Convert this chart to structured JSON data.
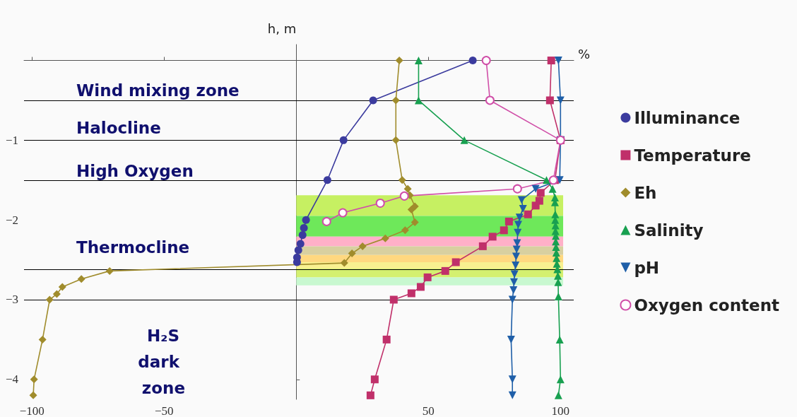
{
  "chart_data": {
    "type": "line",
    "xlabel": "%",
    "ylabel": "h, m",
    "xlim": [
      -103,
      105
    ],
    "xticks": [
      -100,
      -50,
      50,
      100
    ],
    "ylim": [
      -4.25,
      0.2
    ],
    "yticks": [
      -1,
      -2,
      -3,
      -4
    ],
    "grid": false,
    "legend": "right",
    "series": [
      {
        "name": "Illuminance",
        "color": "#3b3b9e",
        "marker": "circle",
        "x": [
          66.8,
          29.1,
          17.9,
          11.8,
          3.7,
          2.9,
          2.4,
          1.6,
          0.8,
          0.3,
          0.3
        ],
        "values": [
          0,
          -0.5,
          -1,
          -1.5,
          -2.0,
          -2.1,
          -2.19,
          -2.3,
          -2.38,
          -2.47,
          -2.53
        ]
      },
      {
        "name": "Temperature",
        "color": "#c0306a",
        "marker": "square",
        "x": [
          96.5,
          96,
          100,
          97.9,
          92.5,
          92,
          90.6,
          87.7,
          80.5,
          78.6,
          74.3,
          70.6,
          60.4,
          56.4,
          49.7,
          47.1,
          43.6,
          36.9,
          34.2,
          29.7,
          28.1
        ],
        "values": [
          0,
          -0.5,
          -1,
          -1.5,
          -1.66,
          -1.76,
          -1.82,
          -1.93,
          -2.02,
          -2.13,
          -2.21,
          -2.33,
          -2.53,
          -2.64,
          -2.72,
          -2.84,
          -2.92,
          -3.0,
          -3.5,
          -4.0,
          -4.2
        ]
      },
      {
        "name": "Eh",
        "color": "#a08c2c",
        "marker": "diamond",
        "x": [
          39,
          37.7,
          37.7,
          40.1,
          42.2,
          43,
          44.9,
          43.6,
          44.9,
          41.2,
          33.7,
          25.1,
          21.1,
          18.2,
          -70.6,
          -81.3,
          -88.5,
          -90.6,
          -93.3,
          -96,
          -99.2,
          -99.5
        ],
        "values": [
          0,
          -0.5,
          -1,
          -1.5,
          -1.61,
          -1.69,
          -1.83,
          -1.87,
          -2.03,
          -2.13,
          -2.23,
          -2.33,
          -2.42,
          -2.54,
          -2.64,
          -2.74,
          -2.84,
          -2.93,
          -3.0,
          -3.5,
          -4.0,
          -4.2
        ]
      },
      {
        "name": "Salinity",
        "color": "#18a050",
        "marker": "triangle",
        "x": [
          46.3,
          46.3,
          63.6,
          94.7,
          97,
          97.9,
          97.9,
          98,
          98,
          98.1,
          98.1,
          98.2,
          98.2,
          98.3,
          98.4,
          98.5,
          98.6,
          98.8,
          99,
          99.1,
          99.2,
          99.7,
          100,
          99.2
        ],
        "values": [
          0,
          -0.5,
          -1,
          -1.5,
          -1.61,
          -1.72,
          -1.78,
          -1.93,
          -2.0,
          -2.07,
          -2.14,
          -2.2,
          -2.27,
          -2.34,
          -2.41,
          -2.48,
          -2.55,
          -2.62,
          -2.7,
          -2.78,
          -2.96,
          -3.5,
          -4.0,
          -4.2
        ]
      },
      {
        "name": "pH",
        "color": "#1f5fa8",
        "marker": "triangle-down",
        "x": [
          99.2,
          100,
          100,
          99.7,
          90.6,
          85.3,
          85.8,
          84.5,
          84,
          83.8,
          83.6,
          83.4,
          83.2,
          83,
          82.6,
          82.4,
          82.2,
          81.8,
          81.3,
          81.8,
          81.8
        ],
        "values": [
          0,
          -0.5,
          -1,
          -1.5,
          -1.61,
          -1.75,
          -1.86,
          -1.97,
          -2.06,
          -2.16,
          -2.29,
          -2.37,
          -2.46,
          -2.57,
          -2.68,
          -2.78,
          -2.88,
          -3.0,
          -3.5,
          -4.0,
          -4.2
        ]
      },
      {
        "name": "Oxygen content",
        "color": "#d04fa8",
        "marker": "circle-open",
        "x": [
          71.9,
          73.3,
          100,
          97.3,
          83.7,
          40.9,
          31.8,
          17.6,
          11.5
        ],
        "values": [
          0,
          -0.5,
          -1,
          -1.5,
          -1.61,
          -1.7,
          -1.79,
          -1.91,
          -2.02
        ]
      }
    ],
    "ref_lines": [
      {
        "axis": "y",
        "value": -0.5,
        "color": "#000000"
      },
      {
        "axis": "y",
        "value": -1,
        "color": "#000000"
      },
      {
        "axis": "y",
        "value": -1.5,
        "color": "#000000"
      },
      {
        "axis": "y",
        "value": -2.62,
        "color": "#000000"
      },
      {
        "axis": "y",
        "value": -3,
        "color": "#000000"
      }
    ],
    "bands": [
      {
        "axis": "y",
        "from": -1.69,
        "to": -1.95,
        "color": "#c6f062"
      },
      {
        "axis": "y",
        "from": -1.95,
        "to": -2.21,
        "color": "#6ee85a"
      },
      {
        "axis": "y",
        "from": -2.21,
        "to": -2.33,
        "color": "#ffb0c8"
      },
      {
        "axis": "y",
        "from": -2.33,
        "to": -2.44,
        "color": "#d8d0a0"
      },
      {
        "axis": "y",
        "from": -2.44,
        "to": -2.53,
        "color": "#ffd880"
      },
      {
        "axis": "y",
        "from": -2.53,
        "to": -2.61,
        "color": "#f8f090"
      },
      {
        "axis": "y",
        "from": -2.61,
        "to": -2.72,
        "color": "#d4f070"
      },
      {
        "axis": "y",
        "from": -2.72,
        "to": -2.82,
        "color": "#c8f8d0"
      }
    ],
    "annotations": [
      "Wind mixing zone",
      "Halocline",
      "High Oxygen",
      "Thermocline",
      "H₂S dark zone"
    ]
  }
}
